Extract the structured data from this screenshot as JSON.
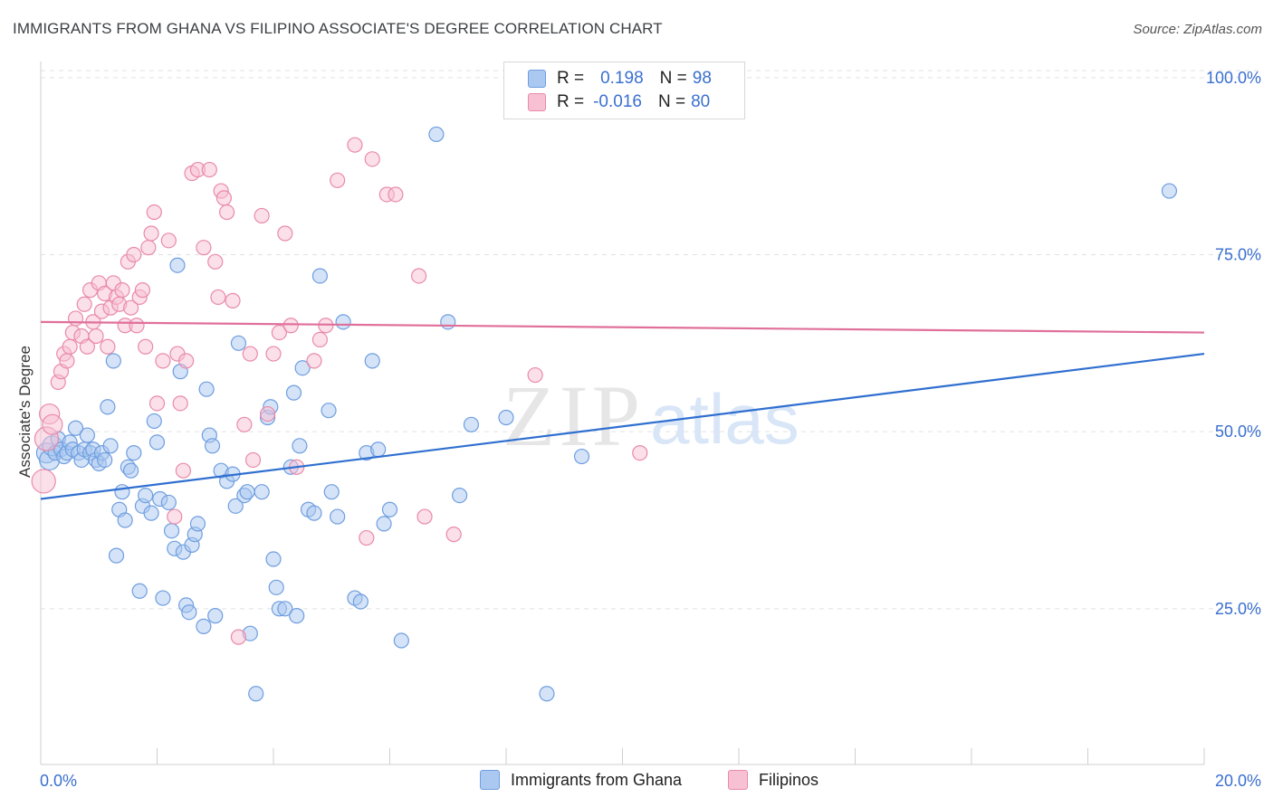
{
  "title": "IMMIGRANTS FROM GHANA VS FILIPINO ASSOCIATE'S DEGREE CORRELATION CHART",
  "source": "Source: ZipAtlas.com",
  "watermark": {
    "zip": "ZIP",
    "atlas": "atlas"
  },
  "legend": {
    "rows": [
      {
        "r_label": "R =",
        "r_value": "0.198",
        "n_label": "N =",
        "n_value": "98",
        "color": "#aac8f0",
        "border": "#6f9ee0"
      },
      {
        "r_label": "R =",
        "r_value": "-0.016",
        "n_label": "N =",
        "n_value": "80",
        "color": "#f7c0d3",
        "border": "#e98aaa"
      }
    ]
  },
  "bottom_legend": [
    {
      "label": "Immigrants from Ghana",
      "color": "#aac8f0",
      "border": "#6f9ee0"
    },
    {
      "label": "Filipinos",
      "color": "#f7c0d3",
      "border": "#e98aaa"
    }
  ],
  "chart_data": {
    "type": "scatter",
    "title": "IMMIGRANTS FROM GHANA VS FILIPINO ASSOCIATE'S DEGREE CORRELATION CHART",
    "xlabel": "",
    "ylabel": "Associate's Degree",
    "xlim": [
      0,
      20
    ],
    "ylim": [
      3,
      101
    ],
    "x_tick_labels": [
      "0.0%",
      "20.0%"
    ],
    "y_ticks": [
      25,
      50,
      75,
      100
    ],
    "y_tick_labels": [
      "25.0%",
      "50.0%",
      "75.0%",
      "100.0%"
    ],
    "grid": true,
    "series": [
      {
        "name": "Immigrants from Ghana",
        "color": "#6f9ee0",
        "fill": "#aac8f0",
        "trend": {
          "x": [
            0,
            20
          ],
          "y": [
            40.5,
            61
          ]
        },
        "trend_color": "#2f6fd0",
        "points": [
          [
            0.1,
            47
          ],
          [
            0.15,
            46
          ],
          [
            0.2,
            48
          ],
          [
            0.25,
            47
          ],
          [
            0.3,
            49
          ],
          [
            0.35,
            47.5
          ],
          [
            0.4,
            46.5
          ],
          [
            0.45,
            47
          ],
          [
            0.5,
            48.5
          ],
          [
            0.55,
            47.5
          ],
          [
            0.6,
            50.5
          ],
          [
            0.65,
            47
          ],
          [
            0.7,
            46
          ],
          [
            0.75,
            47.5
          ],
          [
            0.8,
            49.5
          ],
          [
            0.85,
            47
          ],
          [
            0.9,
            47.5
          ],
          [
            0.95,
            46
          ],
          [
            1.0,
            45.5
          ],
          [
            1.05,
            47
          ],
          [
            1.1,
            46
          ],
          [
            1.15,
            53.5
          ],
          [
            1.2,
            48
          ],
          [
            1.25,
            60
          ],
          [
            1.3,
            32.5
          ],
          [
            1.35,
            39
          ],
          [
            1.4,
            41.5
          ],
          [
            1.45,
            37.5
          ],
          [
            1.5,
            45
          ],
          [
            1.55,
            44.5
          ],
          [
            1.6,
            47
          ],
          [
            1.7,
            27.5
          ],
          [
            1.75,
            39.5
          ],
          [
            1.8,
            41
          ],
          [
            1.9,
            38.5
          ],
          [
            1.95,
            51.5
          ],
          [
            2.0,
            48.5
          ],
          [
            2.05,
            40.5
          ],
          [
            2.1,
            26.5
          ],
          [
            2.2,
            40
          ],
          [
            2.25,
            36
          ],
          [
            2.3,
            33.5
          ],
          [
            2.35,
            73.5
          ],
          [
            2.4,
            58.5
          ],
          [
            2.45,
            33
          ],
          [
            2.5,
            25.5
          ],
          [
            2.55,
            24.5
          ],
          [
            2.6,
            34
          ],
          [
            2.65,
            35.5
          ],
          [
            2.7,
            37
          ],
          [
            2.8,
            22.5
          ],
          [
            2.85,
            56
          ],
          [
            2.9,
            49.5
          ],
          [
            2.95,
            48
          ],
          [
            3.0,
            24
          ],
          [
            3.1,
            44.5
          ],
          [
            3.2,
            43
          ],
          [
            3.3,
            44
          ],
          [
            3.35,
            39.5
          ],
          [
            3.4,
            62.5
          ],
          [
            3.5,
            41
          ],
          [
            3.55,
            41.5
          ],
          [
            3.6,
            21.5
          ],
          [
            3.7,
            13
          ],
          [
            3.8,
            41.5
          ],
          [
            3.9,
            52
          ],
          [
            3.95,
            53.5
          ],
          [
            4.0,
            32
          ],
          [
            4.05,
            28
          ],
          [
            4.1,
            25
          ],
          [
            4.2,
            25
          ],
          [
            4.3,
            45
          ],
          [
            4.35,
            55.5
          ],
          [
            4.4,
            24
          ],
          [
            4.45,
            48
          ],
          [
            4.5,
            59
          ],
          [
            4.6,
            39
          ],
          [
            4.7,
            38.5
          ],
          [
            4.8,
            72
          ],
          [
            4.95,
            53
          ],
          [
            5.0,
            41.5
          ],
          [
            5.1,
            38
          ],
          [
            5.2,
            65.5
          ],
          [
            5.4,
            26.5
          ],
          [
            5.5,
            26
          ],
          [
            5.6,
            47
          ],
          [
            5.7,
            60
          ],
          [
            5.8,
            47.5
          ],
          [
            5.9,
            37
          ],
          [
            6.0,
            39
          ],
          [
            6.2,
            20.5
          ],
          [
            6.8,
            92
          ],
          [
            7.0,
            65.5
          ],
          [
            7.2,
            41
          ],
          [
            7.4,
            51
          ],
          [
            8.0,
            52
          ],
          [
            8.7,
            13
          ],
          [
            9.3,
            46.5
          ],
          [
            19.4,
            84
          ]
        ]
      },
      {
        "name": "Filipinos",
        "color": "#e98aaa",
        "fill": "#f7c0d3",
        "trend": {
          "x": [
            0,
            20
          ],
          "y": [
            65.5,
            64
          ]
        },
        "trend_color": "#e0709a",
        "points": [
          [
            0.05,
            43
          ],
          [
            0.1,
            49
          ],
          [
            0.15,
            52.5
          ],
          [
            0.2,
            51
          ],
          [
            0.3,
            57
          ],
          [
            0.35,
            58.5
          ],
          [
            0.4,
            61
          ],
          [
            0.45,
            60
          ],
          [
            0.5,
            62
          ],
          [
            0.55,
            64
          ],
          [
            0.6,
            66
          ],
          [
            0.7,
            63.5
          ],
          [
            0.75,
            68
          ],
          [
            0.8,
            62
          ],
          [
            0.85,
            70
          ],
          [
            0.9,
            65.5
          ],
          [
            0.95,
            63.5
          ],
          [
            1.0,
            71
          ],
          [
            1.05,
            67
          ],
          [
            1.1,
            69.5
          ],
          [
            1.15,
            62
          ],
          [
            1.2,
            67.5
          ],
          [
            1.25,
            71
          ],
          [
            1.3,
            69
          ],
          [
            1.35,
            68
          ],
          [
            1.4,
            70
          ],
          [
            1.45,
            65
          ],
          [
            1.5,
            74
          ],
          [
            1.55,
            67.5
          ],
          [
            1.6,
            75
          ],
          [
            1.65,
            65
          ],
          [
            1.7,
            69
          ],
          [
            1.75,
            70
          ],
          [
            1.8,
            62
          ],
          [
            1.85,
            76
          ],
          [
            1.9,
            78
          ],
          [
            1.95,
            81
          ],
          [
            2.0,
            54
          ],
          [
            2.1,
            60
          ],
          [
            2.2,
            77
          ],
          [
            2.3,
            38
          ],
          [
            2.35,
            61
          ],
          [
            2.4,
            54
          ],
          [
            2.45,
            44.5
          ],
          [
            2.5,
            60
          ],
          [
            2.6,
            86.5
          ],
          [
            2.7,
            87
          ],
          [
            2.8,
            76
          ],
          [
            2.9,
            87
          ],
          [
            3.0,
            74
          ],
          [
            3.05,
            69
          ],
          [
            3.1,
            84
          ],
          [
            3.15,
            83
          ],
          [
            3.2,
            81
          ],
          [
            3.3,
            68.5
          ],
          [
            3.4,
            21
          ],
          [
            3.5,
            51
          ],
          [
            3.6,
            61
          ],
          [
            3.65,
            46
          ],
          [
            3.8,
            80.5
          ],
          [
            3.9,
            52.5
          ],
          [
            4.0,
            61
          ],
          [
            4.1,
            64
          ],
          [
            4.2,
            78
          ],
          [
            4.3,
            65
          ],
          [
            4.4,
            45
          ],
          [
            4.7,
            60
          ],
          [
            4.8,
            63
          ],
          [
            4.9,
            65
          ],
          [
            5.1,
            85.5
          ],
          [
            5.4,
            90.5
          ],
          [
            5.6,
            35
          ],
          [
            5.7,
            88.5
          ],
          [
            5.95,
            83.5
          ],
          [
            6.1,
            83.5
          ],
          [
            6.5,
            72
          ],
          [
            6.6,
            38
          ],
          [
            7.1,
            35.5
          ],
          [
            8.5,
            58
          ],
          [
            10.3,
            47
          ]
        ]
      }
    ]
  }
}
